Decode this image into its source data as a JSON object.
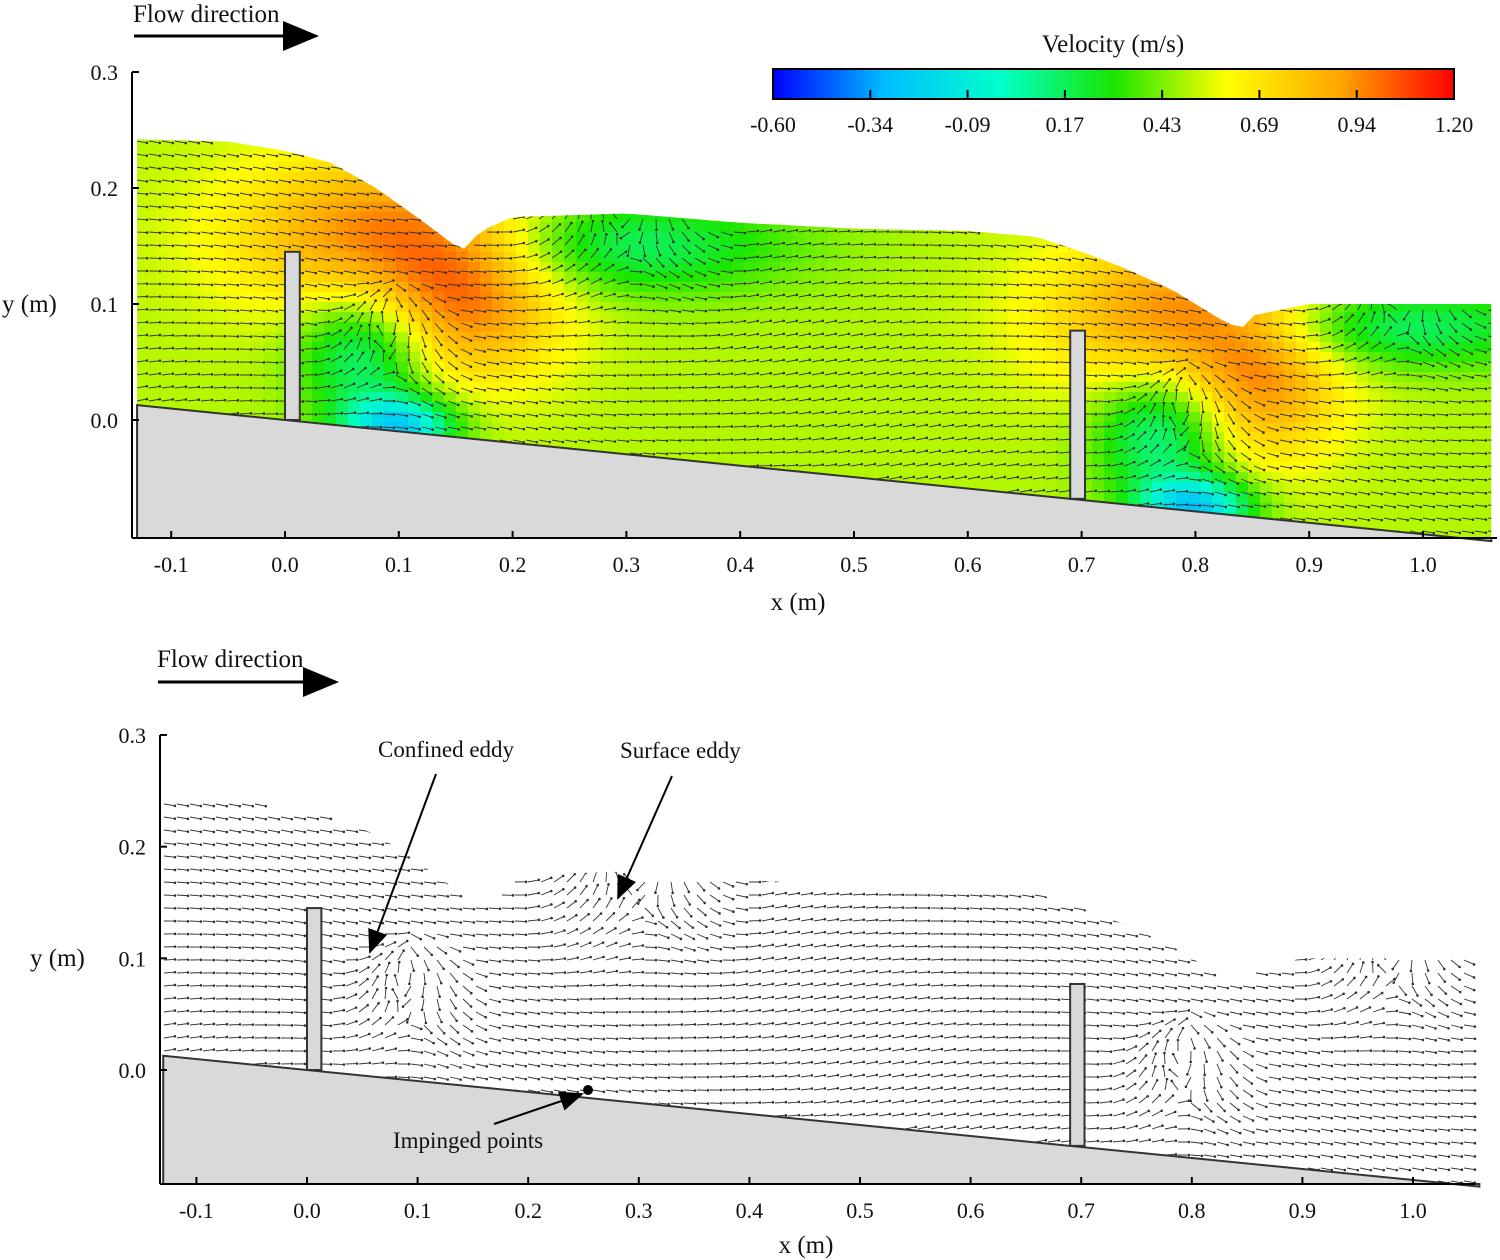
{
  "chart_data": [
    {
      "type": "heatmap",
      "panel": "top",
      "xlabel": "x (m)",
      "ylabel": "y (m)",
      "xlim": [
        -0.13,
        1.06
      ],
      "ylim": [
        -0.1,
        0.3
      ],
      "x_ticks": [
        "-0.1",
        "0.0",
        "0.1",
        "0.2",
        "0.3",
        "0.4",
        "0.5",
        "0.6",
        "0.7",
        "0.8",
        "0.9",
        "1.0"
      ],
      "y_ticks": [
        "0.0",
        "0.1",
        "0.2",
        "0.3"
      ],
      "flow_label": "Flow direction",
      "colorbar": {
        "title": "Velocity (m/s)",
        "min": -0.6,
        "max": 1.2,
        "ticks": [
          "-0.60",
          "-0.34",
          "-0.09",
          "0.17",
          "0.43",
          "0.69",
          "0.94",
          "1.20"
        ],
        "colors": [
          "#0000ff",
          "#00bfff",
          "#00ffcc",
          "#19e600",
          "#ffff00",
          "#ffa500",
          "#ff0000"
        ]
      },
      "bed": {
        "slope": -0.0985,
        "x_start": -0.13,
        "x_end": 1.06
      },
      "weirs": [
        {
          "x": 0.0,
          "width": 0.013,
          "height": 0.145
        },
        {
          "x": 0.69,
          "width": 0.013,
          "height": 0.145
        }
      ],
      "free_surface": {
        "x": [
          -0.13,
          -0.05,
          0.0,
          0.04,
          0.08,
          0.12,
          0.15,
          0.16,
          0.17,
          0.2,
          0.3,
          0.4,
          0.5,
          0.6,
          0.66,
          0.7,
          0.74,
          0.78,
          0.82,
          0.84,
          0.85,
          0.9,
          1.0,
          1.06
        ],
        "y": [
          0.242,
          0.24,
          0.232,
          0.222,
          0.2,
          0.172,
          0.15,
          0.147,
          0.162,
          0.175,
          0.178,
          0.17,
          0.165,
          0.163,
          0.158,
          0.145,
          0.13,
          0.112,
          0.088,
          0.078,
          0.09,
          0.1,
          0.1,
          0.1
        ]
      }
    },
    {
      "type": "scatter",
      "panel": "bottom",
      "xlabel": "x (m)",
      "ylabel": "y (m)",
      "xlim": [
        -0.13,
        1.06
      ],
      "ylim": [
        -0.1,
        0.3
      ],
      "x_ticks": [
        "-0.1",
        "0.0",
        "0.1",
        "0.2",
        "0.3",
        "0.4",
        "0.5",
        "0.6",
        "0.7",
        "0.8",
        "0.9",
        "1.0"
      ],
      "y_ticks": [
        "0.0",
        "0.1",
        "0.2",
        "0.3"
      ],
      "flow_label": "Flow direction",
      "annotations": [
        {
          "text": "Confined eddy",
          "target": [
            0.06,
            0.1
          ]
        },
        {
          "text": "Surface eddy",
          "target": [
            0.28,
            0.15
          ]
        },
        {
          "text": "Impinged points",
          "target": [
            0.26,
            -0.018
          ]
        }
      ]
    }
  ]
}
